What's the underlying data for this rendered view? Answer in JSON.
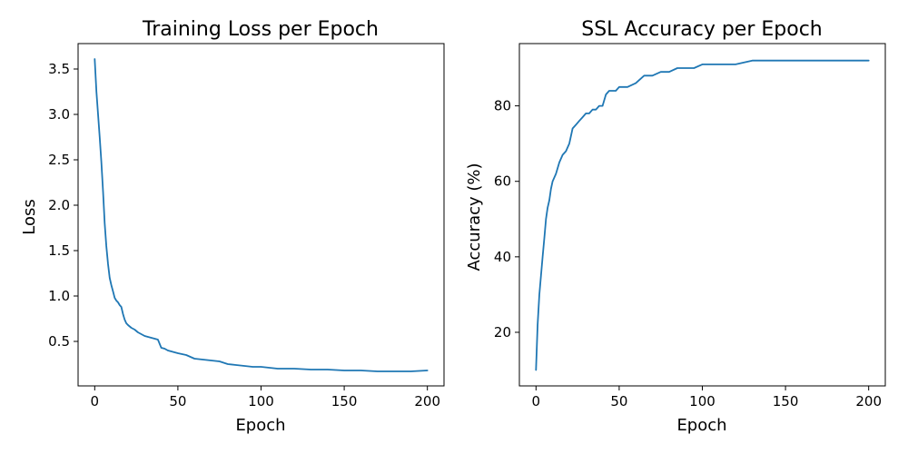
{
  "series_color": "#1f77b4",
  "chart_data": [
    {
      "type": "line",
      "title": "Training Loss per Epoch",
      "xlabel": "Epoch",
      "ylabel": "Loss",
      "xlim": [
        -10,
        210
      ],
      "ylim": [
        0.01,
        3.78
      ],
      "xticks": [
        0,
        50,
        100,
        150,
        200
      ],
      "yticks": [
        0.5,
        1.0,
        1.5,
        2.0,
        2.5,
        3.0,
        3.5
      ],
      "ytick_labels": [
        "0.5",
        "1.0",
        "1.5",
        "2.0",
        "2.5",
        "3.0",
        "3.5"
      ],
      "grid": false,
      "legend": "none",
      "series": [
        {
          "x": [
            0,
            1,
            2,
            3,
            4,
            5,
            6,
            7,
            8,
            9,
            10,
            11,
            12,
            13,
            14,
            15,
            16,
            17,
            18,
            19,
            20,
            22,
            24,
            26,
            28,
            30,
            32,
            34,
            36,
            38,
            40,
            42,
            44,
            46,
            48,
            50,
            55,
            60,
            65,
            70,
            75,
            80,
            85,
            90,
            95,
            100,
            110,
            120,
            130,
            140,
            150,
            160,
            170,
            180,
            190,
            200
          ],
          "values": [
            3.61,
            3.25,
            3.0,
            2.75,
            2.48,
            2.15,
            1.8,
            1.55,
            1.35,
            1.2,
            1.12,
            1.05,
            0.98,
            0.95,
            0.93,
            0.9,
            0.88,
            0.8,
            0.74,
            0.7,
            0.68,
            0.65,
            0.63,
            0.6,
            0.58,
            0.56,
            0.55,
            0.54,
            0.53,
            0.52,
            0.43,
            0.42,
            0.4,
            0.39,
            0.38,
            0.37,
            0.35,
            0.31,
            0.3,
            0.29,
            0.28,
            0.25,
            0.24,
            0.23,
            0.22,
            0.22,
            0.2,
            0.2,
            0.19,
            0.19,
            0.18,
            0.18,
            0.17,
            0.17,
            0.17,
            0.18
          ]
        }
      ]
    },
    {
      "type": "line",
      "title": "SSL Accuracy per Epoch",
      "xlabel": "Epoch",
      "ylabel": "Accuracy (%)",
      "xlim": [
        -10,
        210
      ],
      "ylim": [
        5.8,
        96.5
      ],
      "xticks": [
        0,
        50,
        100,
        150,
        200
      ],
      "yticks": [
        20,
        40,
        60,
        80
      ],
      "ytick_labels": [
        "20",
        "40",
        "60",
        "80"
      ],
      "grid": false,
      "legend": "none",
      "series": [
        {
          "x": [
            0,
            1,
            2,
            3,
            4,
            5,
            6,
            7,
            8,
            9,
            10,
            12,
            14,
            16,
            18,
            20,
            22,
            24,
            26,
            28,
            30,
            32,
            34,
            36,
            38,
            40,
            42,
            44,
            46,
            48,
            50,
            55,
            60,
            65,
            70,
            75,
            80,
            85,
            90,
            95,
            100,
            110,
            120,
            130,
            140,
            150,
            160,
            170,
            180,
            190,
            200
          ],
          "values": [
            10,
            22,
            30,
            35,
            40,
            45,
            50,
            53,
            55,
            58,
            60,
            62,
            65,
            67,
            68,
            70,
            74,
            75,
            76,
            77,
            78,
            78,
            79,
            79,
            80,
            80,
            83,
            84,
            84,
            84,
            85,
            85,
            86,
            88,
            88,
            89,
            89,
            90,
            90,
            90,
            91,
            91,
            91,
            92,
            92,
            92,
            92,
            92,
            92,
            92,
            92
          ]
        }
      ]
    }
  ]
}
